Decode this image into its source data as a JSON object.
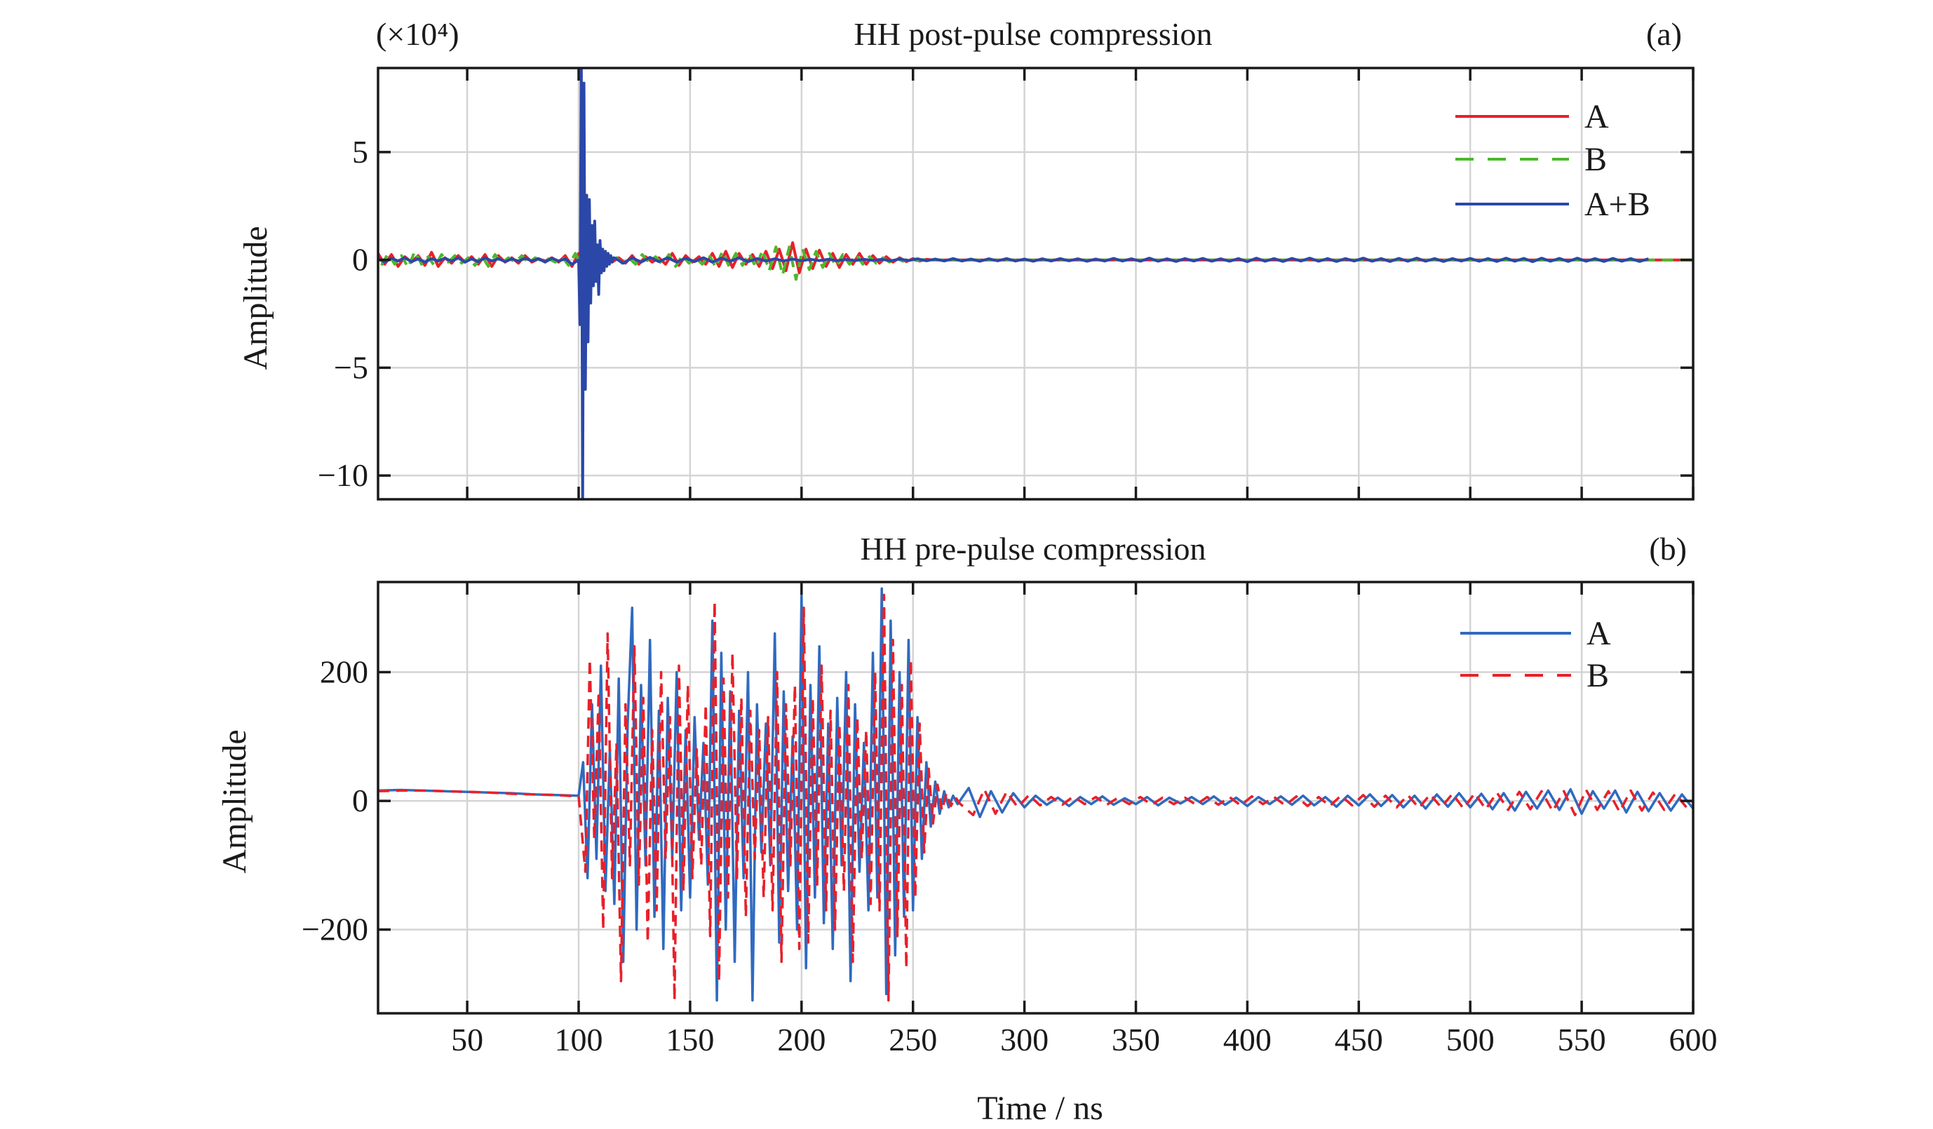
{
  "chart_data": [
    {
      "type": "line",
      "title": "HH post-pulse compression",
      "panel_label": "(a)",
      "multiplier_label": "(×10⁴)",
      "xlabel": "",
      "ylabel": "Amplitude",
      "xlim": [
        10,
        600
      ],
      "ylim": [
        -11.1,
        8.9
      ],
      "xticks": [
        50,
        100,
        150,
        200,
        250,
        300,
        350,
        400,
        450,
        500,
        550,
        600
      ],
      "yticks": [
        5,
        0,
        -5,
        -10
      ],
      "ytick_labels": [
        "5",
        "0",
        "−5",
        "−10"
      ],
      "grid": true,
      "legend": "top-right",
      "series": [
        {
          "name": "A",
          "color": "#e8202a",
          "dash": "solid",
          "segments": [
            {
              "x0": 10,
              "dx": 3,
              "y": [
                0.3,
                -0.2,
                0.25,
                -0.3,
                0.15,
                -0.1,
                0.2,
                -0.25,
                0.35,
                -0.3,
                0.1,
                -0.15,
                0.2,
                -0.1,
                0.15,
                -0.2,
                0.25,
                -0.3,
                0.2,
                -0.1,
                0.1,
                -0.15,
                0.2,
                -0.1,
                0.05,
                -0.05,
                0.1,
                -0.1,
                0.2,
                -0.3,
                0.3,
                -0.25,
                0.2,
                -0.2,
                0.15,
                -0.1,
                0.1,
                -0.15,
                0.2,
                -0.2,
                0.15,
                -0.1,
                0.1,
                -0.2,
                0.3,
                -0.25,
                0.2,
                -0.1,
                0.15,
                -0.2,
                0.3,
                -0.3,
                0.4,
                -0.35,
                0.3,
                -0.2,
                0.25,
                -0.3,
                0.4,
                -0.4,
                0.5,
                -0.5,
                0.8,
                -0.6,
                0.5,
                -0.4,
                0.45,
                -0.3,
                0.3,
                -0.35,
                0.25,
                -0.2,
                0.3,
                -0.2,
                0.2,
                -0.15,
                0.15,
                -0.1,
                0.1,
                -0.08,
                0.06,
                -0.05,
                0.03,
                0
              ]
            },
            {
              "x0": 262,
              "dx": 338,
              "y": [
                0,
                0
              ]
            }
          ]
        },
        {
          "name": "B",
          "color": "#4cb82c",
          "dash": "dashed",
          "segments": [
            {
              "x0": 11.5,
              "dx": 3,
              "y": [
                -0.25,
                0.3,
                -0.2,
                0.2,
                -0.35,
                0.4,
                -0.2,
                0.15,
                -0.3,
                0.25,
                -0.1,
                0.2,
                -0.15,
                0.1,
                -0.25,
                0.2,
                -0.3,
                0.25,
                -0.15,
                0.1,
                -0.1,
                0.2,
                -0.15,
                0.1,
                -0.05,
                0.05,
                -0.1,
                0.15,
                -0.25,
                0.3,
                -0.3,
                0.2,
                -0.25,
                0.15,
                -0.1,
                0.15,
                -0.15,
                0.1,
                -0.2,
                0.25,
                -0.1,
                0.15,
                -0.2,
                0.25,
                -0.3,
                0.2,
                -0.15,
                0.1,
                -0.2,
                0.25,
                -0.35,
                0.4,
                -0.3,
                0.3,
                -0.25,
                0.3,
                -0.35,
                0.45,
                -0.5,
                0.6,
                -0.7,
                0.6,
                -0.9,
                0.5,
                -0.45,
                0.4,
                -0.35,
                0.3,
                -0.3,
                0.25,
                -0.2,
                0.25,
                -0.2,
                0.15,
                -0.15,
                0.1,
                -0.1,
                0.08,
                -0.06,
                0.05,
                -0.03,
                0.02,
                0
              ]
            },
            {
              "x0": 262,
              "dx": 338,
              "y": [
                0,
                0
              ]
            }
          ]
        },
        {
          "name": "A+B",
          "color": "#2b47a8",
          "dash": "solid",
          "segments": [
            {
              "x0": 10,
              "dx": 3,
              "y": [
                0.05,
                -0.1,
                0.08,
                -0.05,
                0.1,
                -0.08,
                0.05,
                -0.1,
                0.06,
                -0.05,
                0.08,
                -0.06,
                0.1,
                -0.1,
                0.05,
                -0.08,
                0.1,
                -0.05,
                0.06,
                -0.08,
                0.05,
                -0.06,
                0.08,
                -0.05,
                0.06,
                -0.1,
                0.08,
                -0.05,
                0.05,
                -0.2
              ]
            },
            {
              "x0": 100,
              "dx": 0.6,
              "y": [
                0,
                -3,
                9.5,
                -11.5,
                8.2,
                -6,
                3,
                -3.8,
                2.8,
                -2,
                1.6,
                -1.2,
                1.8,
                -1,
                0.7,
                -1.6,
                0.9,
                -0.6,
                0.5,
                -0.5,
                0.4,
                -0.3,
                0.3,
                -0.2,
                0.2,
                -0.1,
                0.1
              ]
            },
            {
              "x0": 116,
              "dx": 4,
              "y": [
                0.1,
                -0.15,
                0.1,
                -0.1,
                0.12,
                -0.08,
                0.1,
                -0.1,
                0.08,
                -0.08,
                0.1,
                -0.1,
                0.08,
                -0.06,
                0.1,
                -0.08,
                0.06,
                -0.05,
                0.05,
                -0.05,
                0.04,
                -0.04,
                0.03,
                -0.03,
                0.03,
                -0.03,
                0.02,
                -0.03,
                0.03,
                -0.02,
                0.03,
                -0.04,
                0.04,
                -0.03,
                0.05,
                -0.04,
                0.04,
                -0.05,
                0.06,
                -0.05,
                0.04,
                -0.06,
                0.05,
                -0.04,
                0.06,
                -0.05,
                0.04,
                -0.06,
                0.05,
                -0.05,
                0.06,
                -0.04,
                0.05,
                -0.06,
                0.04,
                -0.05,
                0.07,
                -0.05,
                0.05,
                -0.06,
                0.08,
                -0.06,
                0.05,
                -0.07,
                0.06,
                -0.05,
                0.07,
                -0.06,
                0.05,
                -0.06,
                0.06,
                -0.08,
                0.08,
                -0.06,
                0.06,
                -0.07,
                0.07,
                -0.05,
                0.08,
                -0.06,
                0.06,
                -0.07,
                0.06,
                -0.05,
                0.08,
                -0.06,
                0.06,
                -0.07,
                0.07,
                -0.06,
                0.08,
                -0.06,
                0.06,
                -0.07,
                0.06,
                -0.05,
                0.07,
                -0.06,
                0.06,
                -0.07,
                0.08,
                -0.06,
                0.07,
                -0.08,
                0.08,
                -0.06,
                0.07,
                -0.07,
                0.08,
                -0.06,
                0.06,
                -0.07,
                0.07,
                -0.06,
                0.06,
                -0.07,
                0.05
              ]
            }
          ]
        }
      ]
    },
    {
      "type": "line",
      "title": "HH pre-pulse compression",
      "panel_label": "(b)",
      "xlabel": "Time / ns",
      "ylabel": "Amplitude",
      "xlim": [
        10,
        600
      ],
      "ylim": [
        -330,
        340
      ],
      "xticks": [
        50,
        100,
        150,
        200,
        250,
        300,
        350,
        400,
        450,
        500,
        550,
        600
      ],
      "yticks": [
        200,
        0,
        -200
      ],
      "ytick_labels": [
        "200",
        "0",
        "−200"
      ],
      "grid": true,
      "legend": "top-right",
      "series": [
        {
          "name": "A",
          "color": "#2f6ac0",
          "dash": "solid",
          "segments": [
            {
              "x0": 10,
              "dx": 10,
              "y": [
                16,
                17,
                16,
                15,
                14,
                13,
                12,
                10,
                9,
                8
              ]
            },
            {
              "x0": 102,
              "dx": 2,
              "y": [
                60,
                -120,
                150,
                -90,
                210,
                -140,
                80,
                -160,
                190,
                -250,
                120,
                300,
                -200,
                180,
                -100,
                250,
                -180,
                140,
                -230,
                160,
                -90,
                200,
                -170,
                110,
                -150,
                130,
                -60,
                90,
                -130,
                280,
                -310,
                230,
                -200,
                170,
                -250,
                140,
                -120,
                200,
                -310,
                150,
                -80,
                120,
                -100,
                260,
                -220,
                170,
                -140,
                100,
                -200,
                320,
                -260,
                180,
                -150,
                240,
                -190,
                120,
                -230,
                160,
                -100,
                200,
                -280,
                150,
                -110,
                90,
                -170,
                230,
                -150,
                330,
                -300,
                280,
                -240,
                200,
                -180,
                250,
                -170,
                130,
                -90,
                60,
                -40,
                30,
                -20,
                15,
                -10,
                8,
                -5
              ]
            },
            {
              "x0": 275,
              "dx": 5,
              "y": [
                20,
                -25,
                15,
                -18,
                12,
                -10,
                8,
                -6,
                5,
                -8,
                6,
                -5,
                7,
                -6,
                4,
                -5,
                6,
                -7,
                5,
                -4,
                6,
                -5,
                7,
                -6,
                5,
                -8,
                6,
                -5,
                7,
                -6,
                8,
                -7,
                6,
                -9,
                8,
                -7,
                10,
                -8,
                9,
                -10,
                8,
                -12,
                10,
                -9,
                12,
                -10,
                11,
                -13,
                12,
                -15,
                14,
                -12,
                16,
                -14,
                18,
                -20,
                15,
                -12,
                16,
                -18,
                14,
                -16,
                12,
                -15,
                10,
                -12,
                8
              ]
            }
          ]
        },
        {
          "name": "B",
          "color": "#e8202a",
          "dash": "dashed",
          "segments": [
            {
              "x0": 10,
              "dx": 10,
              "y": [
                15,
                16,
                16,
                15,
                14,
                13,
                11,
                10,
                9,
                7
              ]
            },
            {
              "x0": 103,
              "dx": 2,
              "y": [
                -110,
                220,
                -60,
                170,
                -200,
                260,
                -120,
                90,
                -280,
                150,
                -100,
                240,
                -130,
                160,
                -220,
                110,
                -170,
                200,
                -90,
                130,
                -310,
                210,
                -140,
                180,
                -120,
                80,
                -100,
                150,
                -210,
                310,
                -280,
                190,
                -150,
                230,
                -120,
                160,
                -180,
                140,
                -90,
                110,
                -150,
                130,
                -170,
                200,
                -250,
                150,
                -100,
                180,
                -230,
                300,
                -220,
                160,
                -130,
                210,
                -170,
                140,
                -200,
                120,
                -140,
                180,
                -250,
                130,
                -90,
                110,
                -160,
                200,
                -170,
                320,
                -310,
                250,
                -210,
                180,
                -260,
                220,
                -150,
                120,
                -80,
                50,
                -35,
                25,
                -15,
                12,
                -8,
                6,
                -4
              ]
            },
            {
              "x0": 277,
              "dx": 5,
              "y": [
                -22,
                18,
                -20,
                14,
                -10,
                9,
                -7,
                6,
                -6,
                7,
                -5,
                6,
                -6,
                5,
                -5,
                6,
                -6,
                5,
                -5,
                5,
                -6,
                6,
                -6,
                6,
                -7,
                7,
                -5,
                6,
                -7,
                7,
                -8,
                6,
                -8,
                8,
                -7,
                9,
                -9,
                8,
                -10,
                9,
                -11,
                10,
                -10,
                11,
                -12,
                12,
                -13,
                13,
                -14,
                14,
                -13,
                15,
                -16,
                15,
                -22,
                17,
                -14,
                15,
                -17,
                16,
                -15,
                13,
                -14,
                11,
                -10,
                9
              ]
            }
          ]
        }
      ]
    }
  ]
}
